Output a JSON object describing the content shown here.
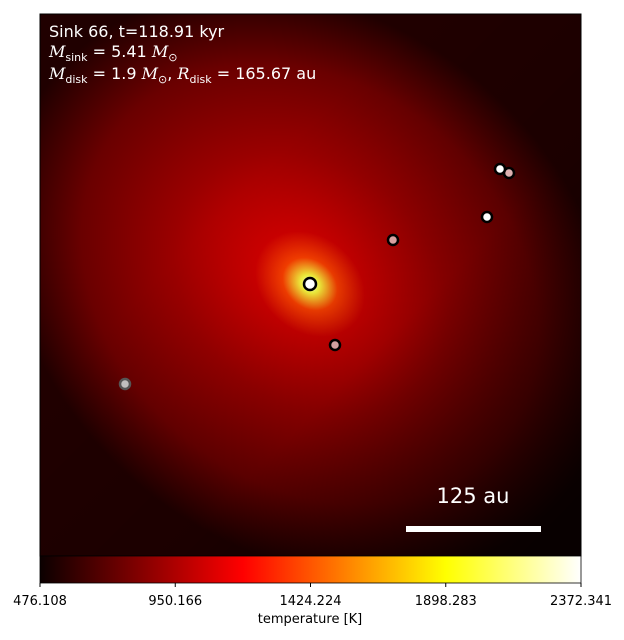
{
  "header": {
    "line1": "Sink 66, t=118.91 kyr",
    "line2": {
      "symbol": "M",
      "sub": "sink",
      "rest": " = 5.41 ",
      "unit": "M",
      "unit_sub": "⊙"
    },
    "line3": {
      "symbol": "M",
      "sub": "disk",
      "rest": " = 1.9 ",
      "unit": "M",
      "unit_sub": "⊙",
      "sep": ", ",
      "symbol2": "R",
      "sub2": "disk",
      "rest2": " = 165.67 au"
    }
  },
  "scale_bar": {
    "label": "125 au"
  },
  "colorbar": {
    "label": "temperature [K]",
    "lim": [
      476.108,
      2372.341
    ],
    "ticks": [
      476.108,
      950.166,
      1424.224,
      1898.283,
      2372.341
    ]
  }
}
